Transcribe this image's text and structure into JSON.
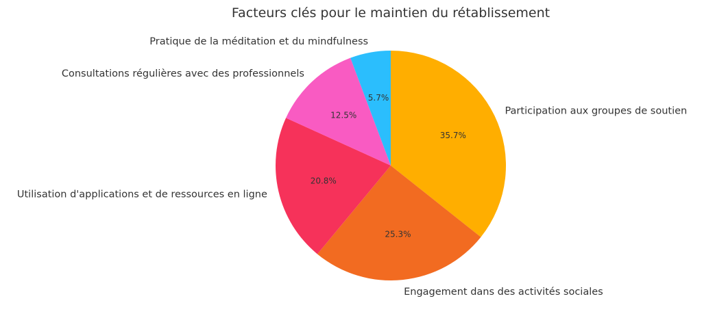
{
  "chart_data": {
    "type": "pie",
    "title": "Facteurs clés pour le maintien du rétablissement",
    "labels": [
      "Participation aux groupes de soutien",
      "Engagement dans des activités sociales",
      "Utilisation d'applications et de ressources en ligne",
      "Consultations régulières avec des professionnels",
      "Pratique de la méditation et du mindfulness"
    ],
    "values": [
      35.7,
      25.3,
      20.8,
      12.5,
      5.7
    ],
    "value_labels": [
      "35.7%",
      "25.3%",
      "20.8%",
      "12.5%",
      "5.7%"
    ],
    "colors": [
      "#FFAE00",
      "#F26B21",
      "#F6325A",
      "#F95BC2",
      "#2BBEFD"
    ],
    "start_angle_deg": 90,
    "direction": "clockwise"
  }
}
